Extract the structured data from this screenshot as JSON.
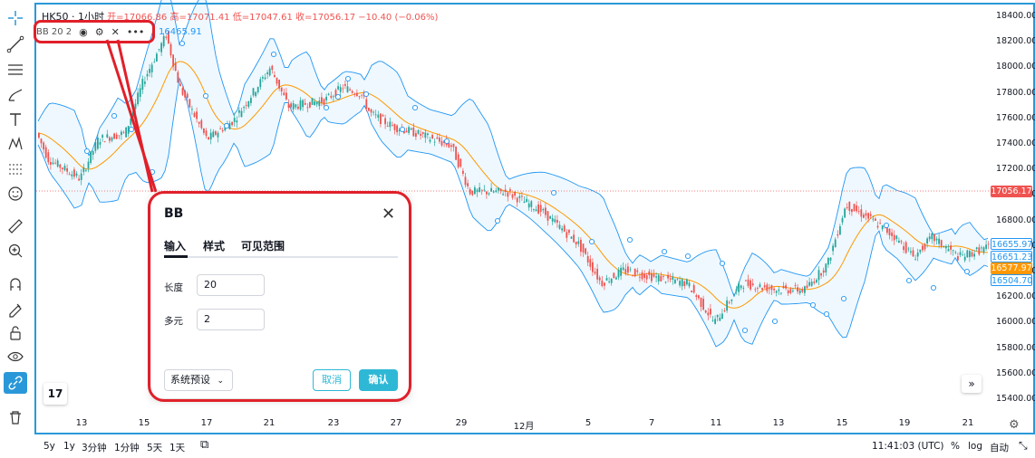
{
  "symbol": "HK50 · 1小时",
  "ohlc": "开=17066.86 高=17071.41 低=17047.61 收=17056.17 −10.40 (−0.06%)",
  "indicator": {
    "name": "BB 20 2",
    "value": "16465.91"
  },
  "icons": {
    "eye": "eye-icon",
    "gear": "gear-icon",
    "close": "close-icon",
    "more": "more-icon"
  },
  "price_axis": {
    "ticks": [
      "18400.00",
      "18200.00",
      "18000.00",
      "17800.00",
      "17600.00",
      "17400.00",
      "17200.00",
      "17000.00",
      "16800.00",
      "16600.00",
      "16400.00",
      "16200.00",
      "16000.00",
      "15800.00",
      "15600.00",
      "15400.00"
    ],
    "current": "17056.17",
    "bb_upper": "16655.97",
    "bb_mid": "16651.23",
    "bb_basis": "16577.97",
    "bb_lower": "16504.70"
  },
  "time_axis": [
    "13",
    "15",
    "17",
    "21",
    "23",
    "27",
    "29",
    "12月",
    "5",
    "7",
    "11",
    "13",
    "15",
    "19",
    "21"
  ],
  "bottom_bar": {
    "ranges": [
      "5y",
      "1y",
      "3分钟",
      "1分钟",
      "5天",
      "1天"
    ],
    "time": "11:41:03 (UTC)",
    "percent": "%",
    "log": "log",
    "auto": "自动"
  },
  "dialog": {
    "title": "BB",
    "tabs": [
      "输入",
      "样式",
      "可见范围"
    ],
    "length_label": "长度",
    "length_value": "20",
    "mult_label": "多元",
    "mult_value": "2",
    "preset": "系统预设",
    "cancel": "取消",
    "ok": "确认"
  },
  "tv_logo": "17",
  "scroll_btn": "»",
  "colors": {
    "up": "#26a69a",
    "down": "#ef5350",
    "basis": "#ff9800",
    "band": "#2196f3",
    "highlight": "#e0202a",
    "accent": "#2eb8d6"
  }
}
